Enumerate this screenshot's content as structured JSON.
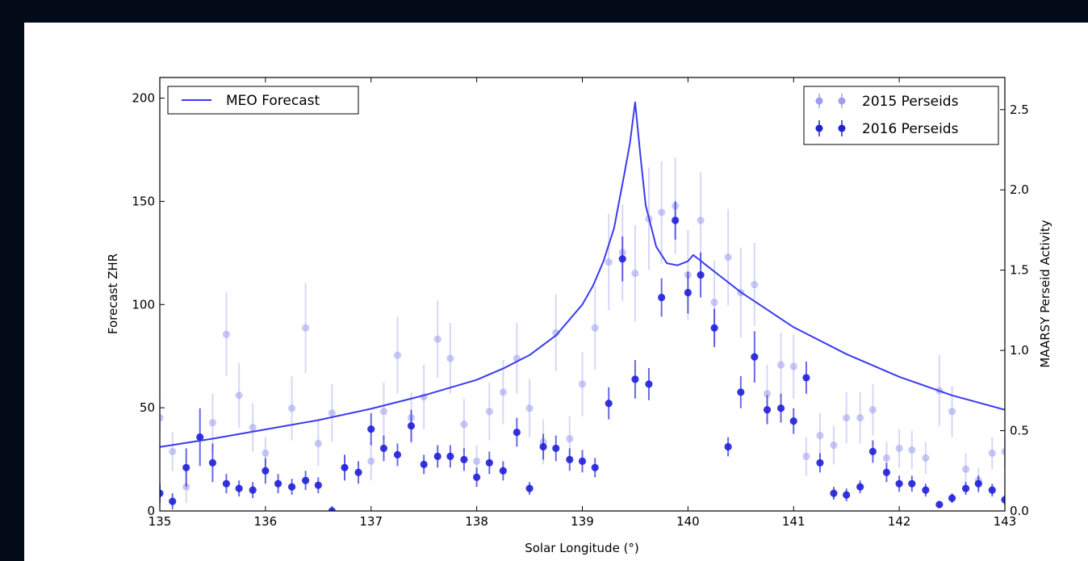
{
  "chart_data": {
    "type": "scatter",
    "xlabel": "Solar Longitude (°)",
    "ylabel_left": "Forecast ZHR",
    "ylabel_right": "MAARSY Perseid Activity",
    "xlim": [
      135,
      143
    ],
    "ylim_left": [
      0,
      210
    ],
    "ylim_right": [
      0,
      2.7
    ],
    "x_ticks": [
      135,
      136,
      137,
      138,
      139,
      140,
      141,
      142,
      143
    ],
    "y_ticks_left": [
      0,
      50,
      100,
      150,
      200
    ],
    "y_ticks_right": [
      "0.0",
      "0.5",
      "1.0",
      "1.5",
      "2.0",
      "2.5"
    ],
    "grid": false,
    "legend_left": {
      "placement": "top-left",
      "entries": [
        "MEO Forecast"
      ]
    },
    "legend_right": {
      "placement": "top-right",
      "entries": [
        "2015 Perseids",
        "2016 Perseids"
      ]
    },
    "colors": {
      "forecast": "#3a3af0",
      "series_2015": "#9d9df0",
      "series_2016": "#2020d8",
      "frame": "#000000",
      "background": "#040b18"
    },
    "forecast": {
      "name": "MEO Forecast",
      "x": [
        135.0,
        135.5,
        136.0,
        136.5,
        137.0,
        137.5,
        138.0,
        138.25,
        138.5,
        138.75,
        139.0,
        139.1,
        139.2,
        139.3,
        139.4,
        139.45,
        139.5,
        139.55,
        139.6,
        139.7,
        139.8,
        139.9,
        140.0,
        140.05,
        140.1,
        140.2,
        140.3,
        140.5,
        141.0,
        141.5,
        142.0,
        142.5,
        143.0
      ],
      "y": [
        31,
        35,
        39.5,
        44,
        49.5,
        56,
        63.5,
        69,
        75.5,
        85,
        100,
        109,
        121,
        137,
        164,
        178,
        198,
        172,
        148,
        128,
        120,
        119,
        121,
        124,
        122,
        118,
        114,
        106,
        89,
        76,
        65,
        56,
        49
      ]
    },
    "series": [
      {
        "name": "2015 Perseids",
        "x": [
          135.0,
          135.12,
          135.25,
          135.5,
          135.63,
          135.75,
          135.88,
          136.0,
          136.25,
          136.38,
          136.5,
          136.63,
          136.75,
          137.0,
          137.12,
          137.25,
          137.38,
          137.5,
          137.63,
          137.75,
          137.88,
          138.0,
          138.12,
          138.25,
          138.38,
          138.5,
          138.63,
          138.75,
          138.88,
          139.0,
          139.12,
          139.25,
          139.38,
          139.5,
          139.63,
          139.75,
          139.88,
          140.0,
          140.12,
          140.25,
          140.38,
          140.5,
          140.63,
          140.75,
          140.88,
          141.0,
          141.12,
          141.25,
          141.38,
          141.5,
          141.63,
          141.75,
          141.88,
          142.0,
          142.12,
          142.25,
          142.38,
          142.5,
          142.63,
          142.75,
          142.88,
          143.0
        ],
        "y": [
          0.58,
          0.37,
          0.15,
          0.55,
          1.1,
          0.72,
          0.52,
          0.36,
          0.64,
          1.14,
          0.42,
          0.61,
          0.27,
          0.31,
          0.62,
          0.97,
          0.58,
          0.71,
          1.07,
          0.95,
          0.54,
          0.31,
          0.62,
          0.74,
          0.95,
          0.64,
          0.43,
          1.11,
          0.45,
          0.79,
          1.14,
          1.55,
          1.61,
          1.48,
          1.82,
          1.86,
          1.9,
          1.47,
          1.81,
          1.3,
          1.58,
          1.36,
          1.41,
          0.73,
          0.91,
          0.9,
          0.34,
          0.47,
          0.41,
          0.58,
          0.58,
          0.63,
          0.33,
          0.39,
          0.38,
          0.33,
          0.75,
          0.62,
          0.26,
          0.19,
          0.36,
          0.37
        ],
        "err": [
          0.12,
          0.12,
          0.1,
          0.18,
          0.26,
          0.2,
          0.15,
          0.1,
          0.2,
          0.28,
          0.14,
          0.18,
          0.08,
          0.12,
          0.18,
          0.24,
          0.16,
          0.2,
          0.24,
          0.22,
          0.16,
          0.1,
          0.18,
          0.2,
          0.22,
          0.18,
          0.14,
          0.24,
          0.14,
          0.2,
          0.26,
          0.3,
          0.3,
          0.3,
          0.32,
          0.32,
          0.3,
          0.28,
          0.3,
          0.26,
          0.3,
          0.28,
          0.26,
          0.18,
          0.2,
          0.2,
          0.12,
          0.14,
          0.12,
          0.16,
          0.16,
          0.16,
          0.1,
          0.12,
          0.12,
          0.1,
          0.22,
          0.16,
          0.1,
          0.08,
          0.1,
          0.1
        ]
      },
      {
        "name": "2016 Perseids",
        "x": [
          135.0,
          135.12,
          135.25,
          135.38,
          135.5,
          135.63,
          135.75,
          135.88,
          136.0,
          136.12,
          136.25,
          136.38,
          136.5,
          136.63,
          136.75,
          136.88,
          137.0,
          137.12,
          137.25,
          137.38,
          137.5,
          137.63,
          137.75,
          137.88,
          138.0,
          138.12,
          138.25,
          138.38,
          138.5,
          138.63,
          138.75,
          138.88,
          139.0,
          139.12,
          139.25,
          139.38,
          139.5,
          139.63,
          139.75,
          139.88,
          140.0,
          140.12,
          140.25,
          140.38,
          140.5,
          140.63,
          140.75,
          140.88,
          141.0,
          141.12,
          141.25,
          141.38,
          141.5,
          141.63,
          141.75,
          141.88,
          142.0,
          142.12,
          142.25,
          142.38,
          142.5,
          142.63,
          142.75,
          142.88,
          143.0
        ],
        "y": [
          0.11,
          0.06,
          0.27,
          0.46,
          0.3,
          0.17,
          0.14,
          0.13,
          0.25,
          0.17,
          0.15,
          0.19,
          0.16,
          0.0,
          0.27,
          0.24,
          0.51,
          0.39,
          0.35,
          0.53,
          0.29,
          0.34,
          0.34,
          0.32,
          0.21,
          0.3,
          0.25,
          0.49,
          0.14,
          0.4,
          0.39,
          0.32,
          0.31,
          0.27,
          0.67,
          1.57,
          0.82,
          0.79,
          1.33,
          1.81,
          1.36,
          1.47,
          1.14,
          0.4,
          0.74,
          0.96,
          0.63,
          0.64,
          0.56,
          0.83,
          0.3,
          0.11,
          0.1,
          0.15,
          0.37,
          0.24,
          0.17,
          0.17,
          0.13,
          0.04,
          0.08,
          0.14,
          0.17,
          0.13,
          0.07
        ],
        "err": [
          0.06,
          0.05,
          0.12,
          0.18,
          0.12,
          0.06,
          0.05,
          0.05,
          0.08,
          0.06,
          0.05,
          0.06,
          0.05,
          0.03,
          0.08,
          0.07,
          0.1,
          0.08,
          0.07,
          0.1,
          0.06,
          0.07,
          0.07,
          0.07,
          0.06,
          0.07,
          0.06,
          0.09,
          0.04,
          0.08,
          0.08,
          0.07,
          0.07,
          0.06,
          0.1,
          0.14,
          0.12,
          0.1,
          0.12,
          0.12,
          0.13,
          0.14,
          0.12,
          0.06,
          0.1,
          0.16,
          0.09,
          0.09,
          0.08,
          0.1,
          0.06,
          0.04,
          0.04,
          0.04,
          0.07,
          0.06,
          0.05,
          0.05,
          0.04,
          0.02,
          0.03,
          0.04,
          0.05,
          0.04,
          0.03
        ]
      }
    ]
  }
}
